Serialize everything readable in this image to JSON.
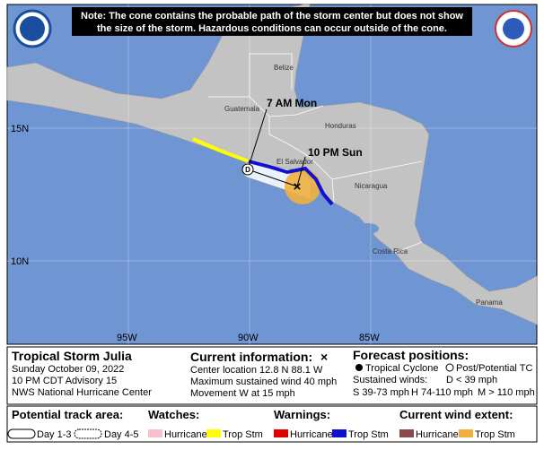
{
  "note": {
    "lines": [
      "Note: The cone contains the probable path of the storm center but does not show",
      "the size of the storm. Hazardous conditions can occur outside of the cone."
    ]
  },
  "map": {
    "countries": [
      "Belize",
      "Guatemala",
      "Honduras",
      "El Salvador",
      "Nicaragua",
      "Costa Rica",
      "Panama"
    ],
    "forecast_labels": [
      "7 AM Mon",
      "10 PM Sun"
    ],
    "point_marker": "D",
    "lat_labels": [
      "15N",
      "10N"
    ],
    "lon_labels": [
      "95W",
      "90W",
      "85W"
    ]
  },
  "storm": {
    "title": "Tropical Storm Julia",
    "date": "Sunday October 09, 2022",
    "advisory": "10 PM CDT Advisory 15",
    "agency": "NWS National Hurricane Center"
  },
  "current": {
    "heading": "Current information:",
    "symbol": "×",
    "lines": [
      "Center location 12.8 N 88.1 W",
      "Maximum sustained wind 40 mph",
      "Movement W at 15 mph"
    ]
  },
  "forecast": {
    "heading": "Forecast positions:",
    "tropical": "Tropical Cyclone",
    "post": "Post/Potential TC",
    "winds_label": "Sustained winds:",
    "d": "D < 39 mph",
    "s": "S 39-73 mph",
    "h": "H 74-110 mph",
    "m": "M > 110 mph"
  },
  "legend": {
    "track": {
      "heading": "Potential track area:",
      "day13": "Day 1-3",
      "day45": "Day 4-5"
    },
    "watches": {
      "heading": "Watches:",
      "hurricane": "Hurricane",
      "trop": "Trop Stm"
    },
    "warnings": {
      "heading": "Warnings:",
      "hurricane": "Hurricane",
      "trop": "Trop Stm"
    },
    "wind": {
      "heading": "Current wind extent:",
      "hurricane": "Hurricane",
      "trop": "Trop Stm"
    }
  }
}
